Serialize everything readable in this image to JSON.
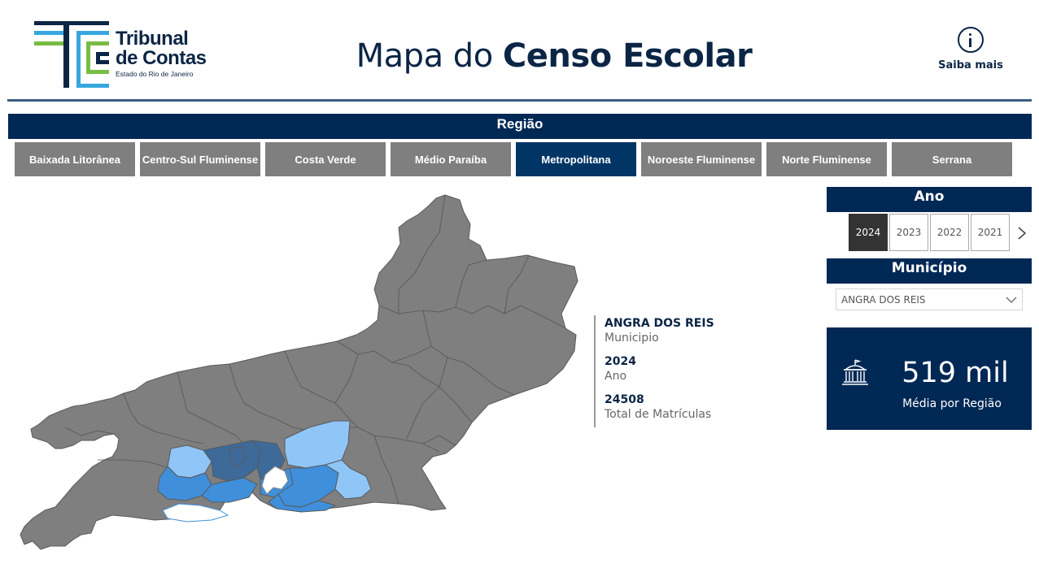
{
  "header": {
    "logo": {
      "line1": "Tribunal",
      "line2": "de Contas",
      "line3": "Estado do Rio de Janeiro"
    },
    "title_light": "Mapa do",
    "title_bold": "Censo Escolar",
    "info_label": "Saiba mais"
  },
  "region": {
    "title": "Região",
    "tabs": [
      "Baixada Litorânea",
      "Centro-Sul Fluminense",
      "Costa Verde",
      "Médio Paraíba",
      "Metropolitana",
      "Noroeste Fluminense",
      "Norte Fluminense",
      "Serrana"
    ],
    "selected": "Metropolitana"
  },
  "tooltip": {
    "municipio_value": "ANGRA DOS REIS",
    "municipio_label": "Municipio",
    "ano_value": "2024",
    "ano_label": "Ano",
    "total_value": "24508",
    "total_label": "Total de Matrículas"
  },
  "year": {
    "title": "Ano",
    "options": [
      "2024",
      "2023",
      "2022",
      "2021"
    ],
    "selected": "2024"
  },
  "municipio": {
    "title": "Município",
    "selected": "ANGRA DOS REIS"
  },
  "kpi": {
    "value": "519 mil",
    "label": "Média por Região"
  },
  "colors": {
    "navy": "#002855",
    "tab_gray": "#7f7f7f",
    "tab_active": "#003566",
    "map_gray": "#7f7f7f",
    "metro_dark": "#3d6a99",
    "metro_mid": "#3f8fdb",
    "metro_light": "#90c5f8"
  },
  "icons": {
    "info": "info-circle-icon",
    "chevron_right": "chevron-right-icon",
    "dropdown": "chevron-down-icon",
    "kpi": "building-icon"
  }
}
